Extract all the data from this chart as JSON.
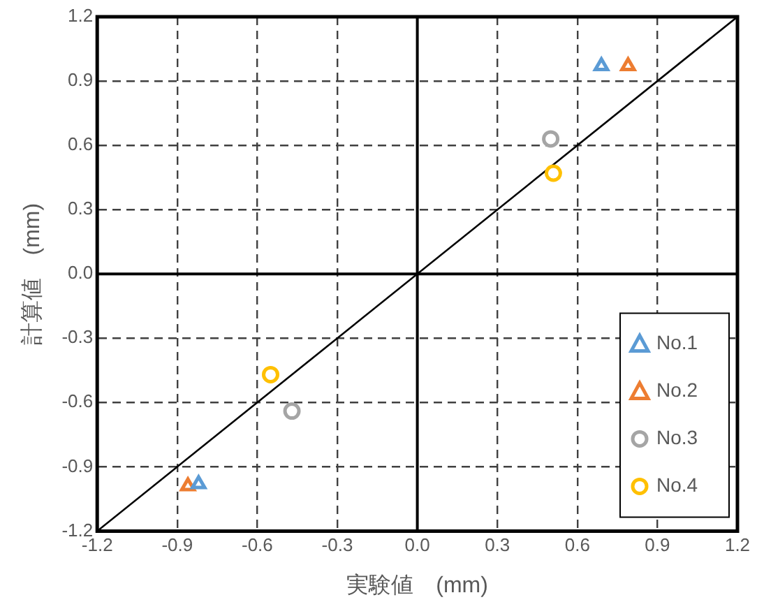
{
  "chart_data": {
    "type": "scatter",
    "xlabel": "実験値　(mm)",
    "ylabel": "計算値　(mm)",
    "xlim": [
      -1.2,
      1.2
    ],
    "ylim": [
      -1.2,
      1.2
    ],
    "xticks": [
      -1.2,
      -0.9,
      -0.6,
      -0.3,
      {
        "value": 0,
        "label": "0.0"
      },
      0.3,
      0.6,
      0.9,
      1.2
    ],
    "yticks": [
      -1.2,
      -0.9,
      -0.6,
      -0.3,
      {
        "value": 0,
        "label": "0.0"
      },
      0.3,
      0.6,
      0.9,
      1.2
    ],
    "grid": true,
    "legend": "bottom right",
    "line_style": "dashed",
    "series": [
      {
        "type": "line",
        "color": "#000000",
        "x": [
          -1.2,
          1.2
        ],
        "values": [
          -1.2,
          1.2
        ],
        "marker": "none",
        "line_style": "solid"
      },
      {
        "name": "No.1",
        "color": "#5b9bd5",
        "marker": "triangle",
        "x": [
          0.69,
          -0.82
        ],
        "values": [
          0.97,
          -0.98
        ]
      },
      {
        "name": "No.2",
        "color": "#ed7d31",
        "marker": "triangle",
        "x": [
          0.79,
          -0.86
        ],
        "values": [
          0.97,
          -0.99
        ]
      },
      {
        "name": "No.3",
        "color": "#a5a5a5",
        "marker": "circle",
        "x": [
          0.5,
          -0.47
        ],
        "values": [
          0.63,
          -0.64
        ]
      },
      {
        "name": "No.4",
        "color": "#ffc000",
        "marker": "circle",
        "x": [
          0.51,
          -0.55
        ],
        "values": [
          0.47,
          -0.47
        ]
      }
    ]
  }
}
